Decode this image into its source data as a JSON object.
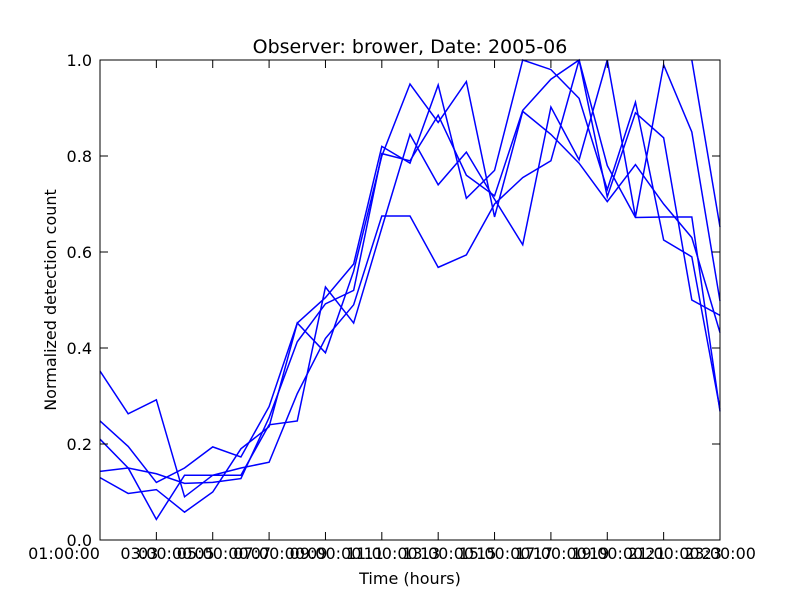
{
  "chart_data": {
    "type": "line",
    "title": "Observer: brower, Date: 2005-06",
    "xlabel": "Time (hours)",
    "ylabel": "Normalized detection count",
    "x_range": [
      1,
      23
    ],
    "ylim": [
      0.0,
      1.0
    ],
    "x_ticks": [
      {
        "value": 1,
        "label": "01:00:00"
      },
      {
        "value": 3,
        "label": "03:00:00"
      },
      {
        "value": 5,
        "label": "05:00:00"
      },
      {
        "value": 7,
        "label": "07:00:00"
      },
      {
        "value": 9,
        "label": "09:00:00"
      },
      {
        "value": 11,
        "label": "11:00:00"
      },
      {
        "value": 13,
        "label": "13:00:00"
      },
      {
        "value": 15,
        "label": "15:00:00"
      },
      {
        "value": 17,
        "label": "17:00:00"
      },
      {
        "value": 19,
        "label": "19:00:00"
      },
      {
        "value": 21,
        "label": "21:00:00"
      },
      {
        "value": 23,
        "label": "23:00:00"
      }
    ],
    "x_minor_labels": [
      {
        "value": 2,
        "label": "03"
      },
      {
        "value": 4,
        "label": "05"
      },
      {
        "value": 6,
        "label": "07"
      },
      {
        "value": 8,
        "label": "09"
      },
      {
        "value": 10,
        "label": "11"
      },
      {
        "value": 12,
        "label": "13"
      },
      {
        "value": 14,
        "label": "15"
      },
      {
        "value": 16,
        "label": "17"
      },
      {
        "value": 18,
        "label": "19"
      },
      {
        "value": 20,
        "label": "21"
      },
      {
        "value": 22,
        "label": "23"
      }
    ],
    "y_ticks": [
      {
        "value": 0.0,
        "label": "0.0"
      },
      {
        "value": 0.2,
        "label": "0.2"
      },
      {
        "value": 0.4,
        "label": "0.4"
      },
      {
        "value": 0.6,
        "label": "0.6"
      },
      {
        "value": 0.8,
        "label": "0.8"
      },
      {
        "value": 1.0,
        "label": "1.0"
      }
    ],
    "x": [
      1,
      2,
      3,
      4,
      5,
      6,
      7,
      8,
      9,
      10,
      11,
      12,
      13,
      14,
      15,
      16,
      17,
      18,
      19,
      20,
      21,
      22,
      23
    ],
    "series": [
      {
        "values": [
          0.352,
          0.263,
          0.292,
          0.09,
          0.135,
          0.135,
          0.24,
          0.248,
          0.527,
          0.452,
          0.65,
          0.845,
          0.74,
          0.808,
          0.71,
          0.615,
          0.902,
          0.792,
          1.0,
          0.673,
          0.99,
          0.85,
          0.498
        ]
      },
      {
        "values": [
          0.248,
          0.195,
          0.12,
          0.15,
          0.194,
          0.173,
          0.278,
          0.452,
          0.505,
          0.575,
          0.82,
          0.785,
          0.948,
          0.712,
          0.77,
          1.0,
          0.98,
          0.92,
          0.73,
          0.912,
          0.625,
          0.59,
          0.272
        ]
      },
      {
        "values": [
          0.21,
          0.15,
          0.043,
          0.135,
          0.135,
          0.15,
          0.162,
          0.305,
          0.42,
          0.49,
          0.675,
          0.675,
          0.568,
          0.594,
          0.7,
          0.755,
          0.79,
          1.0,
          0.715,
          0.89,
          0.838,
          0.5,
          0.468
        ]
      },
      {
        "values": [
          0.13,
          0.097,
          0.105,
          0.058,
          0.1,
          0.19,
          0.236,
          0.452,
          0.39,
          0.56,
          0.8,
          0.95,
          0.87,
          0.955,
          0.673,
          0.893,
          0.845,
          0.785,
          0.705,
          0.782,
          0.7,
          0.63,
          0.432
        ]
      },
      {
        "values": [
          0.143,
          0.15,
          0.138,
          0.118,
          0.12,
          0.128,
          0.255,
          0.413,
          0.492,
          0.52,
          0.805,
          0.79,
          0.885,
          0.76,
          0.717,
          0.895,
          0.96,
          1.0,
          0.78,
          0.672,
          0.673,
          0.673,
          0.268
        ]
      },
      {
        "values": [
          null,
          null,
          null,
          null,
          null,
          null,
          null,
          null,
          null,
          null,
          null,
          null,
          null,
          null,
          null,
          null,
          null,
          null,
          null,
          null,
          null,
          1.0,
          0.652
        ]
      }
    ],
    "series_color": "#0000ff",
    "grid": false,
    "legend": "none"
  }
}
